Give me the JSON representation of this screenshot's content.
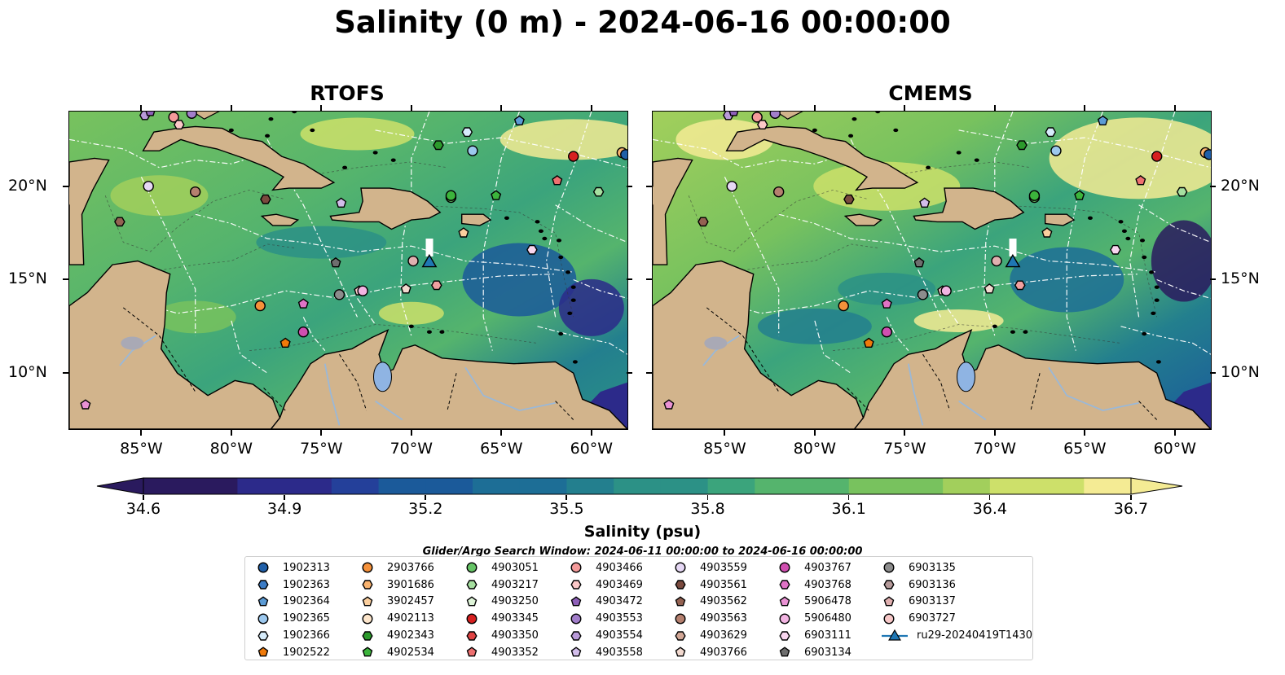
{
  "title": "Salinity (0 m) - 2024-06-16 00:00:00",
  "panels": [
    {
      "title": "RTOFS"
    },
    {
      "title": "CMEMS"
    }
  ],
  "axes": {
    "x_ticks": [
      "85°W",
      "80°W",
      "75°W",
      "70°W",
      "65°W",
      "60°W"
    ],
    "y_ticks": [
      "20°N",
      "15°N",
      "10°N"
    ],
    "lon_range": [
      -89,
      -58
    ],
    "lat_range": [
      7,
      24
    ]
  },
  "colorbar": {
    "label": "Salinity (psu)",
    "ticks": [
      "34.6",
      "34.9",
      "35.2",
      "35.5",
      "35.8",
      "36.1",
      "36.4",
      "36.7"
    ],
    "range": [
      34.6,
      36.7
    ],
    "colors": [
      "#2a1a5e",
      "#2c2a8a",
      "#24409a",
      "#1b5a9a",
      "#1d6e96",
      "#237f8e",
      "#2c9186",
      "#3ba47c",
      "#55b46d",
      "#78c25e",
      "#a2cf5c",
      "#cde06a",
      "#f4eb94"
    ]
  },
  "search_window": "Glider/Argo Search Window: 2024-06-11 00:00:00 to 2024-06-16 00:00:00",
  "legend": {
    "columns": [
      [
        {
          "label": "1902313",
          "shape": "circle",
          "color": "#1f5fa8"
        },
        {
          "label": "1902363",
          "shape": "hexagon",
          "color": "#3b7cc6"
        },
        {
          "label": "1902364",
          "shape": "pentagon",
          "color": "#5b9bd5"
        },
        {
          "label": "1902365",
          "shape": "circle",
          "color": "#9cc8ee"
        },
        {
          "label": "1902366",
          "shape": "hexagon",
          "color": "#d6ecfb"
        },
        {
          "label": "1902522",
          "shape": "pentagon",
          "color": "#f07a0a"
        }
      ],
      [
        {
          "label": "2903766",
          "shape": "circle",
          "color": "#f5913a"
        },
        {
          "label": "3901686",
          "shape": "hexagon",
          "color": "#f9b36f"
        },
        {
          "label": "3902457",
          "shape": "pentagon",
          "color": "#fbcf9e"
        },
        {
          "label": "4902113",
          "shape": "circle",
          "color": "#fde6cc"
        },
        {
          "label": "4902343",
          "shape": "hexagon",
          "color": "#2c9a2c"
        },
        {
          "label": "4902534",
          "shape": "pentagon",
          "color": "#3cb43c"
        }
      ],
      [
        {
          "label": "4903051",
          "shape": "circle",
          "color": "#66c466"
        },
        {
          "label": "4903217",
          "shape": "hexagon",
          "color": "#a6e0a0"
        },
        {
          "label": "4903250",
          "shape": "pentagon",
          "color": "#dff5d9"
        },
        {
          "label": "4903345",
          "shape": "circle",
          "color": "#d62020"
        },
        {
          "label": "4903350",
          "shape": "hexagon",
          "color": "#e04444"
        },
        {
          "label": "4903352",
          "shape": "pentagon",
          "color": "#ee7070"
        }
      ],
      [
        {
          "label": "4903466",
          "shape": "circle",
          "color": "#f49a9a"
        },
        {
          "label": "4903469",
          "shape": "hexagon",
          "color": "#fcc8c8"
        },
        {
          "label": "4903472",
          "shape": "pentagon",
          "color": "#8e5fb8"
        },
        {
          "label": "4903553",
          "shape": "circle",
          "color": "#a27ecb"
        },
        {
          "label": "4903554",
          "shape": "hexagon",
          "color": "#b99ad9"
        },
        {
          "label": "4903558",
          "shape": "pentagon",
          "color": "#d2bdea"
        }
      ],
      [
        {
          "label": "4903559",
          "shape": "circle",
          "color": "#e6d8f5"
        },
        {
          "label": "4903561",
          "shape": "hexagon",
          "color": "#7a4a3e"
        },
        {
          "label": "4903562",
          "shape": "pentagon",
          "color": "#946252"
        },
        {
          "label": "4903563",
          "shape": "circle",
          "color": "#b5806f"
        },
        {
          "label": "4903629",
          "shape": "hexagon",
          "color": "#d2a796"
        },
        {
          "label": "4903766",
          "shape": "pentagon",
          "color": "#f2d9cf"
        }
      ],
      [
        {
          "label": "4903767",
          "shape": "circle",
          "color": "#d04fb0"
        },
        {
          "label": "4903768",
          "shape": "hexagon",
          "color": "#e073c6"
        },
        {
          "label": "5906478",
          "shape": "pentagon",
          "color": "#ea92d4"
        },
        {
          "label": "5906480",
          "shape": "circle",
          "color": "#f2b4e2"
        },
        {
          "label": "6903111",
          "shape": "hexagon",
          "color": "#f9d6ef"
        },
        {
          "label": "6903134",
          "shape": "pentagon",
          "color": "#6e6e6e"
        }
      ],
      [
        {
          "label": "6903135",
          "shape": "circle",
          "color": "#8c8c8c"
        },
        {
          "label": "6903136",
          "shape": "hexagon",
          "color": "#b59a9a"
        },
        {
          "label": "6903137",
          "shape": "pentagon",
          "color": "#e0b0b0"
        },
        {
          "label": "6903727",
          "shape": "circle",
          "color": "#f7c8c8"
        },
        {
          "label": "ru29-20240419T1430",
          "shape": "triangle-line",
          "color": "#1f77b4"
        }
      ]
    ]
  },
  "markers": [
    {
      "lon": -84.8,
      "lat": 23.8,
      "shape": "hexagon",
      "color": "#b99ad9"
    },
    {
      "lon": -84.5,
      "lat": 24.0,
      "shape": "pentagon",
      "color": "#8e5fb8"
    },
    {
      "lon": -83.2,
      "lat": 23.7,
      "shape": "circle",
      "color": "#f49a9a"
    },
    {
      "lon": -82.9,
      "lat": 23.3,
      "shape": "hexagon",
      "color": "#fcc8c8"
    },
    {
      "lon": -82.2,
      "lat": 23.9,
      "shape": "circle",
      "color": "#a27ecb"
    },
    {
      "lon": -84.6,
      "lat": 20.0,
      "shape": "circle",
      "color": "#e6d8f5"
    },
    {
      "lon": -82.0,
      "lat": 19.7,
      "shape": "circle",
      "color": "#b5806f"
    },
    {
      "lon": -86.2,
      "lat": 18.1,
      "shape": "hexagon",
      "color": "#946252"
    },
    {
      "lon": -78.1,
      "lat": 19.3,
      "shape": "hexagon",
      "color": "#7a4a3e"
    },
    {
      "lon": -73.9,
      "lat": 19.1,
      "shape": "pentagon",
      "color": "#d2bdea"
    },
    {
      "lon": -74.2,
      "lat": 15.9,
      "shape": "pentagon",
      "color": "#6e6e6e"
    },
    {
      "lon": -74.0,
      "lat": 14.2,
      "shape": "circle",
      "color": "#8c8c8c"
    },
    {
      "lon": -72.9,
      "lat": 14.4,
      "shape": "pentagon",
      "color": "#f7c8c8"
    },
    {
      "lon": -72.7,
      "lat": 14.4,
      "shape": "circle",
      "color": "#f2b4e2"
    },
    {
      "lon": -76.0,
      "lat": 13.7,
      "shape": "pentagon",
      "color": "#e073c6"
    },
    {
      "lon": -76.0,
      "lat": 12.2,
      "shape": "circle",
      "color": "#d04fb0"
    },
    {
      "lon": -78.4,
      "lat": 13.6,
      "shape": "circle",
      "color": "#f5913a"
    },
    {
      "lon": -77.0,
      "lat": 11.6,
      "shape": "pentagon",
      "color": "#f07a0a"
    },
    {
      "lon": -70.3,
      "lat": 14.5,
      "shape": "pentagon",
      "color": "#f2d9cf"
    },
    {
      "lon": -69.9,
      "lat": 16.0,
      "shape": "circle",
      "color": "#e0b0b0"
    },
    {
      "lon": -68.6,
      "lat": 14.7,
      "shape": "hexagon",
      "color": "#f0a0a0"
    },
    {
      "lon": -67.1,
      "lat": 17.5,
      "shape": "pentagon",
      "color": "#fbcf9e"
    },
    {
      "lon": -67.8,
      "lat": 19.4,
      "shape": "circle",
      "color": "#66c466"
    },
    {
      "lon": -67.8,
      "lat": 19.5,
      "shape": "circle",
      "color": "#3cb43c"
    },
    {
      "lon": -65.3,
      "lat": 19.5,
      "shape": "pentagon",
      "color": "#3cb43c"
    },
    {
      "lon": -68.5,
      "lat": 22.2,
      "shape": "hexagon",
      "color": "#2c9a2c"
    },
    {
      "lon": -66.6,
      "lat": 21.9,
      "shape": "circle",
      "color": "#9cc8ee"
    },
    {
      "lon": -66.9,
      "lat": 22.9,
      "shape": "hexagon",
      "color": "#d6ecfb"
    },
    {
      "lon": -64.0,
      "lat": 23.5,
      "shape": "pentagon",
      "color": "#5b9bd5"
    },
    {
      "lon": -61.0,
      "lat": 21.6,
      "shape": "circle",
      "color": "#d62020"
    },
    {
      "lon": -61.9,
      "lat": 20.3,
      "shape": "pentagon",
      "color": "#ee7070"
    },
    {
      "lon": -59.6,
      "lat": 19.7,
      "shape": "hexagon",
      "color": "#a6e0a0"
    },
    {
      "lon": -58.3,
      "lat": 21.8,
      "shape": "circle",
      "color": "#f9b36f"
    },
    {
      "lon": -58.1,
      "lat": 21.7,
      "shape": "circle",
      "color": "#1f5fa8"
    },
    {
      "lon": -63.3,
      "lat": 16.6,
      "shape": "hexagon",
      "color": "#f9d6ef"
    },
    {
      "lon": -88.1,
      "lat": 8.3,
      "shape": "pentagon",
      "color": "#ea92d4"
    }
  ],
  "glider": {
    "lon": -69.0,
    "lat": 15.9,
    "color": "#1f77b4"
  }
}
